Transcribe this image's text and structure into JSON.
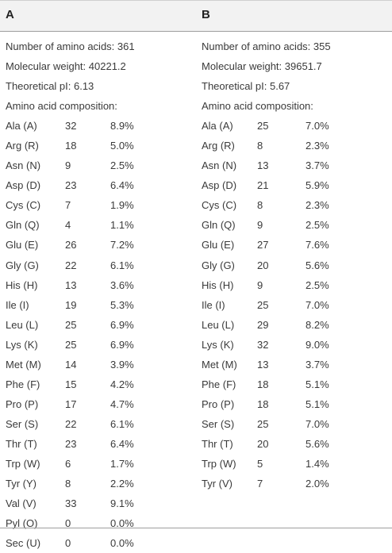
{
  "columns": {
    "A": {
      "label": "A",
      "number_of_amino_acids": "Number of amino acids: 361",
      "molecular_weight": "Molecular weight: 40221.2",
      "theoretical_pi": "Theoretical pI: 6.13",
      "composition_heading": "Amino acid composition:",
      "rows": [
        {
          "aa": "Ala (A)",
          "count": "32",
          "percent": "8.9%"
        },
        {
          "aa": "Arg (R)",
          "count": "18",
          "percent": "5.0%"
        },
        {
          "aa": "Asn (N)",
          "count": "9",
          "percent": "2.5%"
        },
        {
          "aa": "Asp (D)",
          "count": "23",
          "percent": "6.4%"
        },
        {
          "aa": "Cys (C)",
          "count": "7",
          "percent": "1.9%"
        },
        {
          "aa": "Gln (Q)",
          "count": "4",
          "percent": "1.1%"
        },
        {
          "aa": "Glu (E)",
          "count": "26",
          "percent": "7.2%"
        },
        {
          "aa": "Gly (G)",
          "count": "22",
          "percent": "6.1%"
        },
        {
          "aa": "His (H)",
          "count": "13",
          "percent": "3.6%"
        },
        {
          "aa": "Ile (I)",
          "count": "19",
          "percent": "5.3%"
        },
        {
          "aa": "Leu (L)",
          "count": "25",
          "percent": "6.9%"
        },
        {
          "aa": "Lys (K)",
          "count": "25",
          "percent": "6.9%"
        },
        {
          "aa": "Met (M)",
          "count": "14",
          "percent": "3.9%"
        },
        {
          "aa": "Phe (F)",
          "count": "15",
          "percent": "4.2%"
        },
        {
          "aa": "Pro (P)",
          "count": "17",
          "percent": "4.7%"
        },
        {
          "aa": "Ser (S)",
          "count": "22",
          "percent": "6.1%"
        },
        {
          "aa": "Thr (T)",
          "count": "23",
          "percent": "6.4%"
        },
        {
          "aa": "Trp (W)",
          "count": "6",
          "percent": "1.7%"
        },
        {
          "aa": "Tyr (Y)",
          "count": "8",
          "percent": "2.2%"
        },
        {
          "aa": "Val (V)",
          "count": "33",
          "percent": "9.1%"
        },
        {
          "aa": "Pyl (O)",
          "count": "0",
          "percent": "0.0%"
        },
        {
          "aa": "Sec (U)",
          "count": "0",
          "percent": "0.0%"
        }
      ]
    },
    "B": {
      "label": "B",
      "number_of_amino_acids": "Number of amino acids: 355",
      "molecular_weight": "Molecular weight: 39651.7",
      "theoretical_pi": "Theoretical pI: 5.67",
      "composition_heading": "Amino acid composition:",
      "rows": [
        {
          "aa": "Ala (A)",
          "count": "25",
          "percent": "7.0%"
        },
        {
          "aa": "Arg (R)",
          "count": "8",
          "percent": "2.3%"
        },
        {
          "aa": "Asn (N)",
          "count": "13",
          "percent": "3.7%"
        },
        {
          "aa": "Asp (D)",
          "count": "21",
          "percent": "5.9%"
        },
        {
          "aa": "Cys (C)",
          "count": "8",
          "percent": "2.3%"
        },
        {
          "aa": "Gln (Q)",
          "count": "9",
          "percent": "2.5%"
        },
        {
          "aa": "Glu (E)",
          "count": "27",
          "percent": "7.6%"
        },
        {
          "aa": "Gly (G)",
          "count": "20",
          "percent": "5.6%"
        },
        {
          "aa": "His (H)",
          "count": "9",
          "percent": "2.5%"
        },
        {
          "aa": "Ile (I)",
          "count": "25",
          "percent": "7.0%"
        },
        {
          "aa": "Leu (L)",
          "count": "29",
          "percent": "8.2%"
        },
        {
          "aa": "Lys (K)",
          "count": "32",
          "percent": "9.0%"
        },
        {
          "aa": "Met (M)",
          "count": "13",
          "percent": "3.7%"
        },
        {
          "aa": "Phe (F)",
          "count": "18",
          "percent": "5.1%"
        },
        {
          "aa": "Pro (P)",
          "count": "18",
          "percent": "5.1%"
        },
        {
          "aa": "Ser (S)",
          "count": "25",
          "percent": "7.0%"
        },
        {
          "aa": "Thr (T)",
          "count": "20",
          "percent": "5.6%"
        },
        {
          "aa": "Trp (W)",
          "count": "5",
          "percent": "1.4%"
        },
        {
          "aa": "Tyr (V)",
          "count": "7",
          "percent": "2.0%"
        }
      ]
    }
  }
}
